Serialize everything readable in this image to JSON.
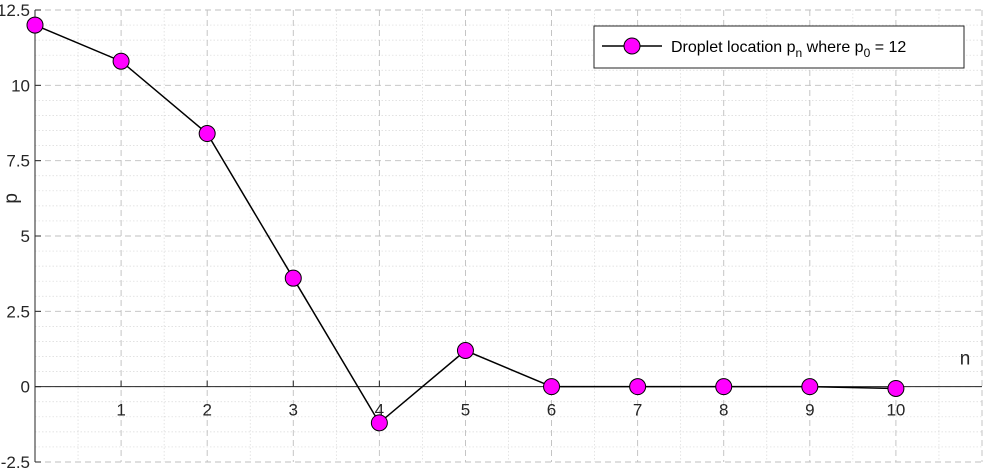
{
  "chart_data": {
    "type": "line",
    "x": [
      0,
      1,
      2,
      3,
      4,
      5,
      6,
      7,
      8,
      9,
      10
    ],
    "series": [
      {
        "name": "Droplet location p_n where p_0 = 12",
        "values": [
          12,
          10.8,
          8.4,
          3.6,
          -1.2,
          1.2,
          0,
          0,
          0,
          0,
          -0.06
        ],
        "line_color": "#000000",
        "marker_color": "#ff00ff",
        "marker": "circle"
      }
    ],
    "xlabel": "n",
    "ylabel": "p",
    "xlim": [
      0,
      11
    ],
    "ylim": [
      -2.5,
      12.5
    ],
    "x_ticks": [
      "1",
      "2",
      "3",
      "4",
      "5",
      "6",
      "7",
      "8",
      "9",
      "10"
    ],
    "y_ticks": [
      "-2.5",
      "0",
      "2.5",
      "5",
      "7.5",
      "10",
      "12.5"
    ],
    "grid": true,
    "minor_grid": true,
    "axes_through_origin": true,
    "legend": {
      "position": "top-right",
      "main_text": "Droplet location p",
      "sub_n": "n",
      "mid_text": " where p",
      "sub_0": "0",
      "end_text": " = 12"
    }
  }
}
